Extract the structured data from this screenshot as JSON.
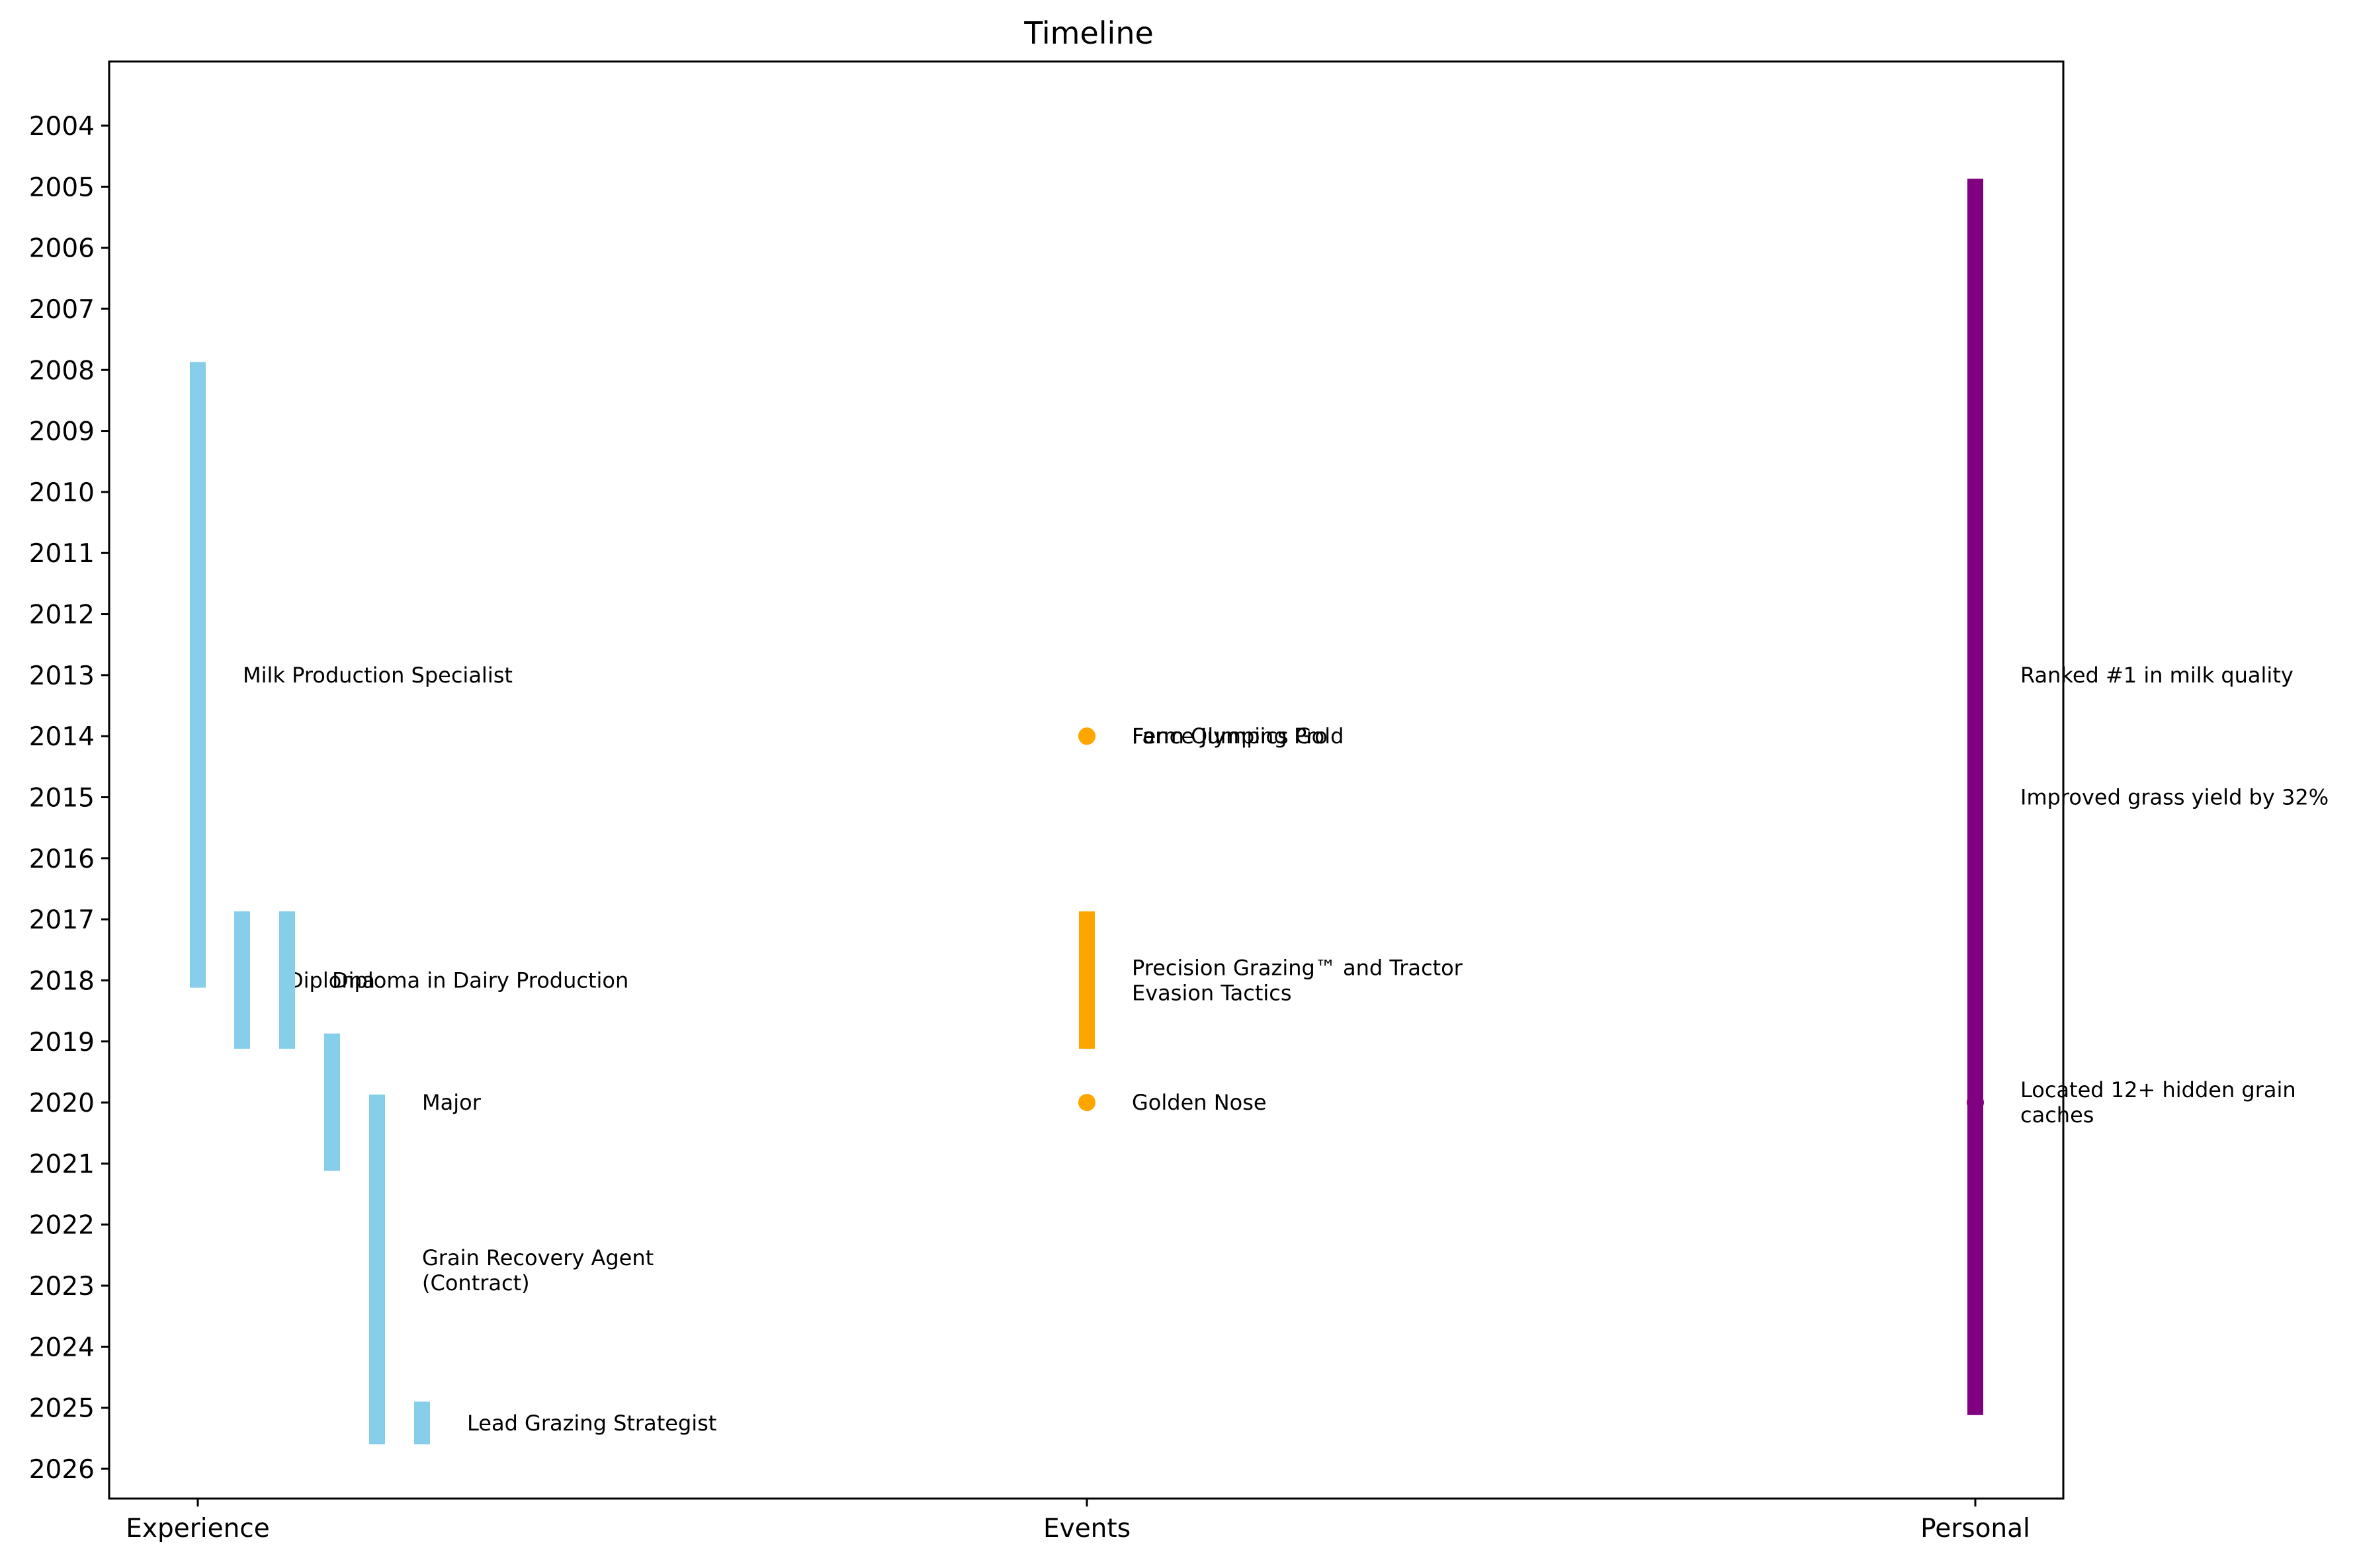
{
  "chart_data": {
    "type": "timeline",
    "title": "Timeline",
    "categories": [
      "Experience",
      "Events",
      "Personal"
    ],
    "ylim": [
      2004,
      2026
    ],
    "y_ticks": [
      2004,
      2005,
      2006,
      2007,
      2008,
      2009,
      2010,
      2011,
      2012,
      2013,
      2014,
      2015,
      2016,
      2017,
      2018,
      2019,
      2020,
      2021,
      2022,
      2023,
      2024,
      2025,
      2026
    ],
    "y_inverted": true,
    "grid": false,
    "colors": {
      "Experience": "#87ceeb",
      "Events": "#ffa500",
      "Personal": "#800080"
    },
    "experience": [
      {
        "label": "Milk Production Specialist",
        "start": 2007.87,
        "end": 2018.12,
        "label_y": 2013.0
      },
      {
        "label": "Diploma",
        "start": 2016.87,
        "end": 2019.12,
        "label_y": 2018.0
      },
      {
        "label": "Diploma in Dairy Production",
        "start": 2016.87,
        "end": 2019.12,
        "label_y": 2018.0
      },
      {
        "label": "",
        "start": 2018.87,
        "end": 2021.12,
        "label_y": 2020.0
      },
      {
        "label": "Major",
        "start": 2019.87,
        "end": 2025.6,
        "label_y": 2020.0
      },
      {
        "label": "Grain Recovery Agent\n(Contract)",
        "start": 2019.87,
        "end": 2025.6,
        "label_y": 2022.75
      },
      {
        "label": "Lead Grazing Strategist",
        "start": 2024.9,
        "end": 2025.6,
        "label_y": 2025.25
      }
    ],
    "events": [
      {
        "label": "Farm Olympics Gold",
        "kind": "point",
        "y": 2014.0
      },
      {
        "label": "Fence Jumping Pro",
        "kind": "point",
        "y": 2014.0
      },
      {
        "label": "Precision Grazing™ and Tractor\nEvasion Tactics",
        "kind": "bar",
        "start": 2016.87,
        "end": 2019.12,
        "label_y": 2018.0
      },
      {
        "label": "Golden Nose",
        "kind": "point",
        "y": 2020.0
      }
    ],
    "personal": {
      "bar": {
        "start": 2004.87,
        "end": 2025.12
      },
      "point_y": 2020.0,
      "annotations": [
        {
          "label": "Ranked #1 in milk quality",
          "y": 2013.0
        },
        {
          "label": "Improved grass yield by 32%",
          "y": 2015.0
        },
        {
          "label": "Located 12+ hidden grain\ncaches",
          "y": 2020.0
        }
      ]
    }
  }
}
